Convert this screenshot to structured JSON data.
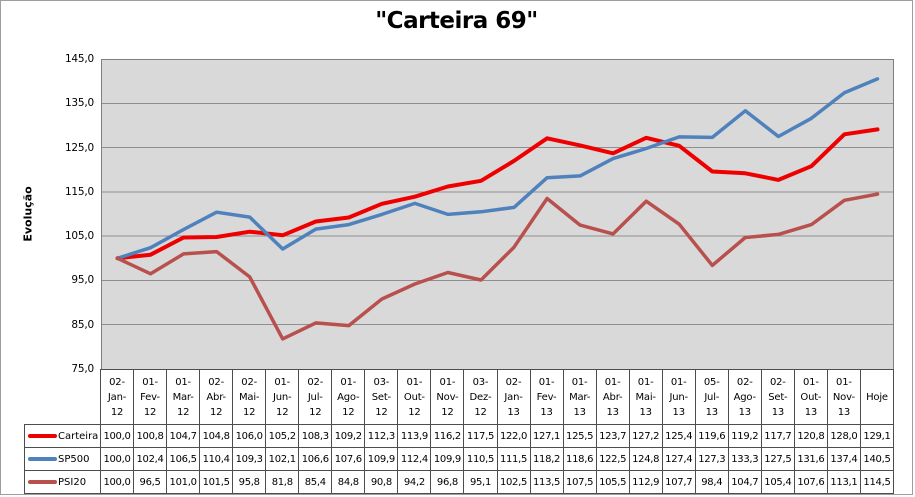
{
  "title": "\"Carteira 69\"",
  "y_axis": {
    "title": "Evolução",
    "tick_labels": [
      "145,0",
      "135,0",
      "125,0",
      "115,0",
      "105,0",
      "95,0",
      "85,0",
      "75,0"
    ]
  },
  "colors": {
    "carteira": "#ee0000",
    "sp500": "#4f81bd",
    "psi20": "#b8504d",
    "plot_background": "#d9d9d9",
    "gridline": "#8f8f8f",
    "plot_border": "#7f7f7f",
    "table_border": "#4d4d4d"
  },
  "chart_data": {
    "type": "line",
    "title": "\"Carteira 69\"",
    "xlabel": "",
    "ylabel": "Evolução",
    "ylim": [
      75.0,
      145.0
    ],
    "ytick_step": 10.0,
    "grid": true,
    "decimal_separator": ",",
    "legend_position": "left, beside data-table rows",
    "data_table_shown": true,
    "categories": [
      "02-Jan-12",
      "01-Fev-12",
      "01-Mar-12",
      "02-Abr-12",
      "02-Mai-12",
      "01-Jun-12",
      "02-Jul-12",
      "01-Ago-12",
      "03-Set-12",
      "01-Out-12",
      "01-Nov-12",
      "03-Dez-12",
      "02-Jan-13",
      "01-Fev-13",
      "01-Mar-13",
      "01-Abr-13",
      "01-Mai-13",
      "01-Jun-13",
      "05-Jul-13",
      "02-Ago-13",
      "02-Set-13",
      "01-Out-13",
      "01-Nov-13",
      "Hoje"
    ],
    "series": [
      {
        "name": "Carteira",
        "color": "#ee0000",
        "stroke_width": 4,
        "values": [
          100.0,
          100.8,
          104.7,
          104.8,
          106.0,
          105.2,
          108.3,
          109.2,
          112.3,
          113.9,
          116.2,
          117.5,
          122.0,
          127.1,
          125.5,
          123.7,
          127.2,
          125.4,
          119.6,
          119.2,
          117.7,
          120.8,
          128.0,
          129.1
        ]
      },
      {
        "name": "SP500",
        "color": "#4f81bd",
        "stroke_width": 3.5,
        "values": [
          100.0,
          102.4,
          106.5,
          110.4,
          109.3,
          102.1,
          106.6,
          107.6,
          109.9,
          112.4,
          109.9,
          110.5,
          111.5,
          118.2,
          118.6,
          122.5,
          124.8,
          127.4,
          127.3,
          133.3,
          127.5,
          131.6,
          137.4,
          140.5
        ]
      },
      {
        "name": "PSI20",
        "color": "#b8504d",
        "stroke_width": 3.5,
        "values": [
          100.0,
          96.5,
          101.0,
          101.5,
          95.8,
          81.8,
          85.4,
          84.8,
          90.8,
          94.2,
          96.8,
          95.1,
          102.5,
          113.5,
          107.5,
          105.5,
          112.9,
          107.7,
          98.4,
          104.7,
          105.4,
          107.6,
          113.1,
          114.5
        ]
      }
    ]
  }
}
